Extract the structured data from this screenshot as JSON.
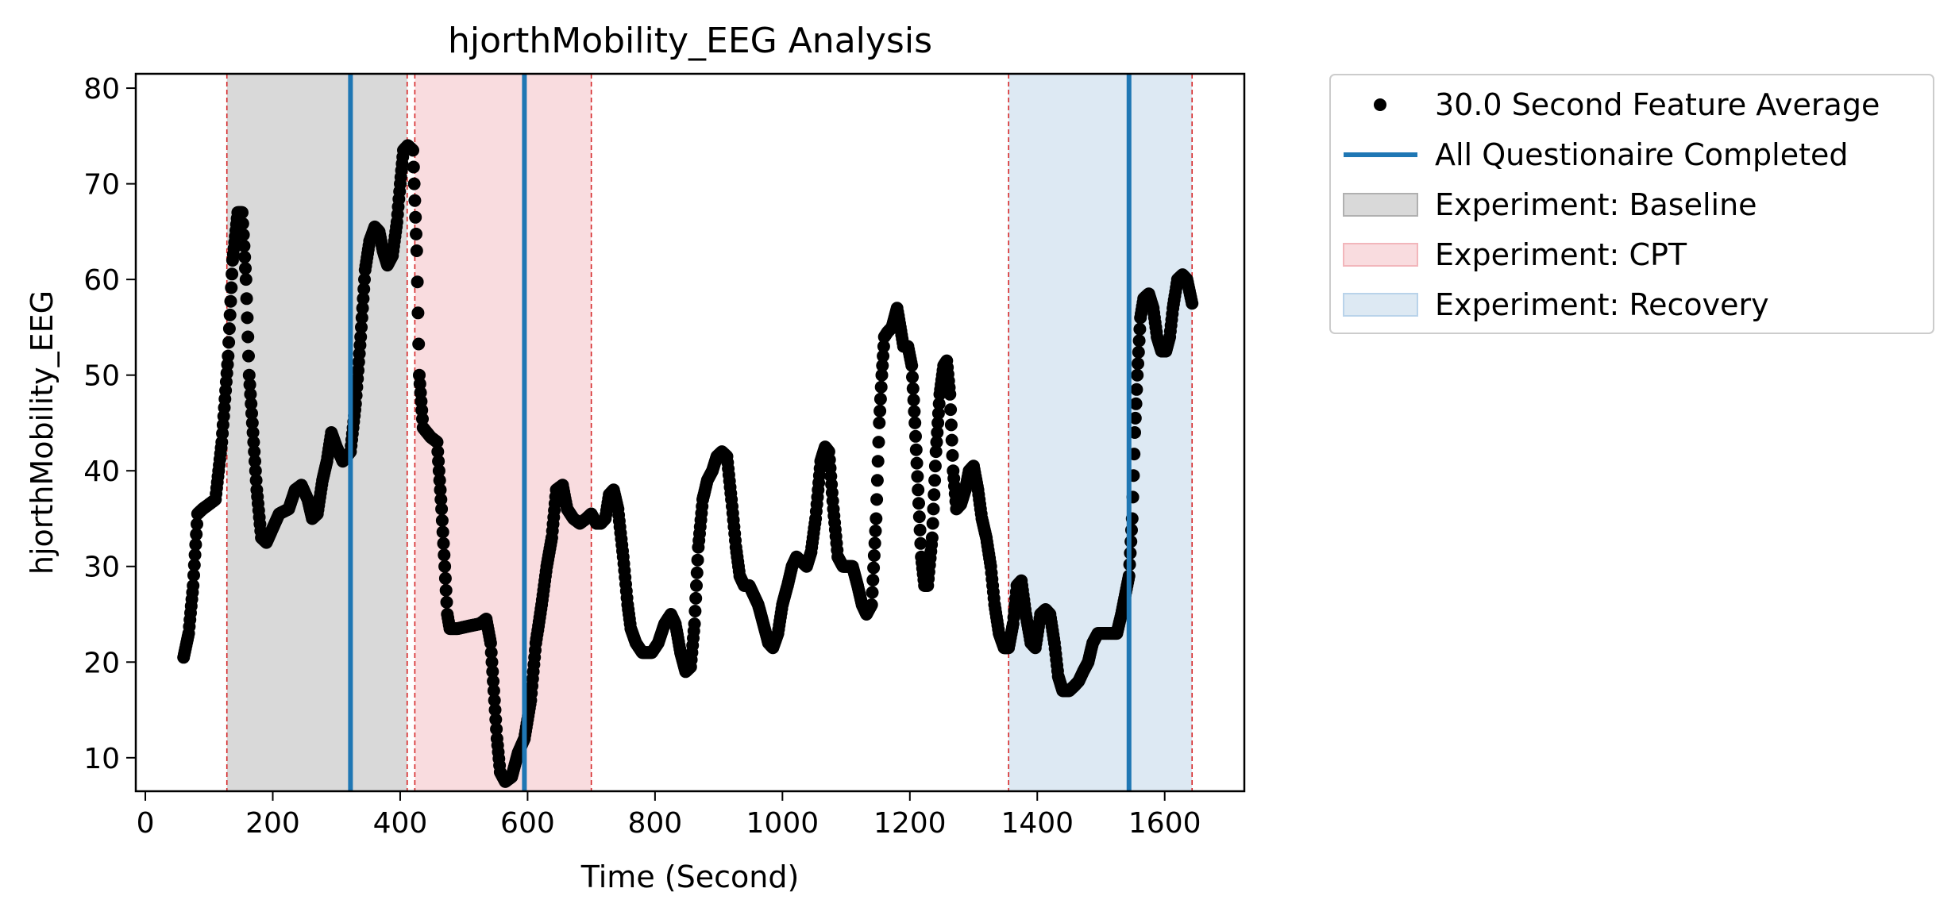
{
  "chart_data": {
    "type": "scatter",
    "title": "hjorthMobility_EEG Analysis",
    "xlabel": "Time (Second)",
    "ylabel": "hjorthMobility_EEG",
    "xlim": [
      -15,
      1725
    ],
    "ylim": [
      6.5,
      81.5
    ],
    "xticks": [
      0,
      200,
      400,
      600,
      800,
      1000,
      1200,
      1400,
      1600
    ],
    "yticks": [
      10,
      20,
      30,
      40,
      50,
      60,
      70,
      80
    ],
    "grid": false,
    "legend_position": "outside-right-top",
    "legend": [
      {
        "label": "30.0 Second Feature Average",
        "kind": "marker",
        "color": "#000000"
      },
      {
        "label": "All Questionaire Completed",
        "kind": "line",
        "color": "#1f77b4"
      },
      {
        "label": "Experiment: Baseline",
        "kind": "patch",
        "color": "#d9d9d9"
      },
      {
        "label": "Experiment: CPT",
        "kind": "patch",
        "color": "#f9dcdf"
      },
      {
        "label": "Experiment: Recovery",
        "kind": "patch",
        "color": "#dde9f3"
      }
    ],
    "regions": [
      {
        "name": "Experiment: Baseline",
        "start": 128,
        "end": 411,
        "color": "#d9d9d9"
      },
      {
        "name": "Experiment: CPT",
        "start": 423,
        "end": 700,
        "color": "#f9dcdf"
      },
      {
        "name": "Experiment: Recovery",
        "start": 1355,
        "end": 1643,
        "color": "#dde9f3"
      }
    ],
    "boundary_line_color": "#d62728",
    "questionnaire_lines": {
      "name": "All Questionaire Completed",
      "x": [
        322,
        595,
        1544
      ],
      "color": "#1f77b4"
    },
    "series": [
      {
        "name": "30.0 Second Feature Average",
        "color": "#000000",
        "points": [
          [
            60,
            20.5
          ],
          [
            68,
            23
          ],
          [
            75,
            28
          ],
          [
            82,
            35.5
          ],
          [
            90,
            36
          ],
          [
            100,
            36.5
          ],
          [
            110,
            37
          ],
          [
            120,
            43
          ],
          [
            130,
            52
          ],
          [
            137,
            62
          ],
          [
            145,
            67
          ],
          [
            152,
            67
          ],
          [
            158,
            60
          ],
          [
            163,
            50
          ],
          [
            168,
            45
          ],
          [
            175,
            38
          ],
          [
            182,
            33
          ],
          [
            190,
            32.5
          ],
          [
            200,
            34
          ],
          [
            210,
            35.5
          ],
          [
            225,
            36
          ],
          [
            235,
            38
          ],
          [
            245,
            38.5
          ],
          [
            255,
            37
          ],
          [
            262,
            35
          ],
          [
            270,
            35.5
          ],
          [
            278,
            39
          ],
          [
            285,
            41
          ],
          [
            292,
            44
          ],
          [
            300,
            42.5
          ],
          [
            310,
            41
          ],
          [
            322,
            42
          ],
          [
            330,
            47
          ],
          [
            338,
            54
          ],
          [
            345,
            61
          ],
          [
            352,
            64
          ],
          [
            360,
            65.5
          ],
          [
            367,
            65
          ],
          [
            373,
            63
          ],
          [
            380,
            61.5
          ],
          [
            388,
            62.5
          ],
          [
            395,
            66
          ],
          [
            400,
            70
          ],
          [
            405,
            73.5
          ],
          [
            412,
            74
          ],
          [
            420,
            73.5
          ],
          [
            426,
            63
          ],
          [
            430,
            50
          ],
          [
            436,
            44.5
          ],
          [
            448,
            43.5
          ],
          [
            458,
            43
          ],
          [
            465,
            36
          ],
          [
            470,
            30
          ],
          [
            474,
            25
          ],
          [
            478,
            23.5
          ],
          [
            490,
            23.5
          ],
          [
            510,
            23.8
          ],
          [
            525,
            24
          ],
          [
            535,
            24.5
          ],
          [
            542,
            22
          ],
          [
            547,
            17
          ],
          [
            552,
            12
          ],
          [
            557,
            8.5
          ],
          [
            565,
            7.5
          ],
          [
            575,
            8
          ],
          [
            585,
            10.5
          ],
          [
            595,
            12
          ],
          [
            605,
            16
          ],
          [
            613,
            22
          ],
          [
            622,
            26
          ],
          [
            630,
            30
          ],
          [
            638,
            33
          ],
          [
            645,
            38
          ],
          [
            655,
            38.5
          ],
          [
            662,
            36
          ],
          [
            672,
            35
          ],
          [
            682,
            34.5
          ],
          [
            692,
            35
          ],
          [
            700,
            35.5
          ],
          [
            708,
            34.5
          ],
          [
            715,
            34.5
          ],
          [
            722,
            35
          ],
          [
            728,
            37.5
          ],
          [
            735,
            38
          ],
          [
            742,
            36
          ],
          [
            750,
            31
          ],
          [
            757,
            26
          ],
          [
            762,
            23.5
          ],
          [
            770,
            22
          ],
          [
            780,
            21
          ],
          [
            795,
            21
          ],
          [
            805,
            22
          ],
          [
            815,
            24
          ],
          [
            825,
            25
          ],
          [
            832,
            24
          ],
          [
            840,
            21
          ],
          [
            848,
            19
          ],
          [
            856,
            19.5
          ],
          [
            862,
            24
          ],
          [
            868,
            32
          ],
          [
            875,
            37
          ],
          [
            882,
            39
          ],
          [
            890,
            40
          ],
          [
            897,
            41.5
          ],
          [
            905,
            42
          ],
          [
            913,
            41.5
          ],
          [
            920,
            37
          ],
          [
            927,
            32
          ],
          [
            933,
            29
          ],
          [
            940,
            28
          ],
          [
            948,
            28
          ],
          [
            955,
            27
          ],
          [
            962,
            26
          ],
          [
            970,
            24
          ],
          [
            978,
            22
          ],
          [
            985,
            21.5
          ],
          [
            993,
            23
          ],
          [
            1000,
            26
          ],
          [
            1008,
            28
          ],
          [
            1015,
            30
          ],
          [
            1022,
            31
          ],
          [
            1030,
            30.5
          ],
          [
            1038,
            30
          ],
          [
            1045,
            31.5
          ],
          [
            1052,
            35
          ],
          [
            1060,
            41
          ],
          [
            1067,
            42.5
          ],
          [
            1073,
            42
          ],
          [
            1080,
            36
          ],
          [
            1087,
            31
          ],
          [
            1095,
            30
          ],
          [
            1103,
            30
          ],
          [
            1110,
            30
          ],
          [
            1118,
            28
          ],
          [
            1125,
            26
          ],
          [
            1132,
            25
          ],
          [
            1140,
            26
          ],
          [
            1147,
            35
          ],
          [
            1152,
            45
          ],
          [
            1156,
            50
          ],
          [
            1160,
            54
          ],
          [
            1165,
            54.5
          ],
          [
            1172,
            55
          ],
          [
            1180,
            57
          ],
          [
            1185,
            55
          ],
          [
            1190,
            53
          ],
          [
            1197,
            53
          ],
          [
            1203,
            51
          ],
          [
            1208,
            45
          ],
          [
            1213,
            38
          ],
          [
            1218,
            31
          ],
          [
            1223,
            28
          ],
          [
            1228,
            28
          ],
          [
            1235,
            33
          ],
          [
            1241,
            42
          ],
          [
            1247,
            48
          ],
          [
            1253,
            51
          ],
          [
            1258,
            51.5
          ],
          [
            1263,
            48
          ],
          [
            1268,
            40
          ],
          [
            1273,
            36
          ],
          [
            1280,
            36.5
          ],
          [
            1287,
            38
          ],
          [
            1293,
            40
          ],
          [
            1300,
            40.5
          ],
          [
            1307,
            38
          ],
          [
            1313,
            35
          ],
          [
            1320,
            33
          ],
          [
            1327,
            30
          ],
          [
            1333,
            26
          ],
          [
            1340,
            23
          ],
          [
            1348,
            21.5
          ],
          [
            1355,
            21.5
          ],
          [
            1362,
            24
          ],
          [
            1368,
            28
          ],
          [
            1375,
            28.5
          ],
          [
            1382,
            25
          ],
          [
            1390,
            22
          ],
          [
            1397,
            21.5
          ],
          [
            1405,
            25
          ],
          [
            1413,
            25.5
          ],
          [
            1420,
            25
          ],
          [
            1427,
            22
          ],
          [
            1433,
            18.5
          ],
          [
            1440,
            17
          ],
          [
            1450,
            17
          ],
          [
            1458,
            17.5
          ],
          [
            1465,
            18
          ],
          [
            1472,
            19
          ],
          [
            1480,
            20
          ],
          [
            1487,
            22
          ],
          [
            1495,
            23
          ],
          [
            1505,
            23
          ],
          [
            1515,
            23
          ],
          [
            1525,
            23
          ],
          [
            1532,
            25
          ],
          [
            1538,
            27
          ],
          [
            1544,
            29
          ],
          [
            1549,
            35
          ],
          [
            1553,
            44
          ],
          [
            1557,
            50
          ],
          [
            1562,
            56
          ],
          [
            1567,
            58
          ],
          [
            1575,
            58.5
          ],
          [
            1582,
            57
          ],
          [
            1588,
            54
          ],
          [
            1595,
            52.5
          ],
          [
            1602,
            52.5
          ],
          [
            1608,
            54
          ],
          [
            1613,
            57
          ],
          [
            1620,
            60
          ],
          [
            1628,
            60.5
          ],
          [
            1635,
            60
          ],
          [
            1643,
            57.5
          ]
        ]
      }
    ]
  }
}
